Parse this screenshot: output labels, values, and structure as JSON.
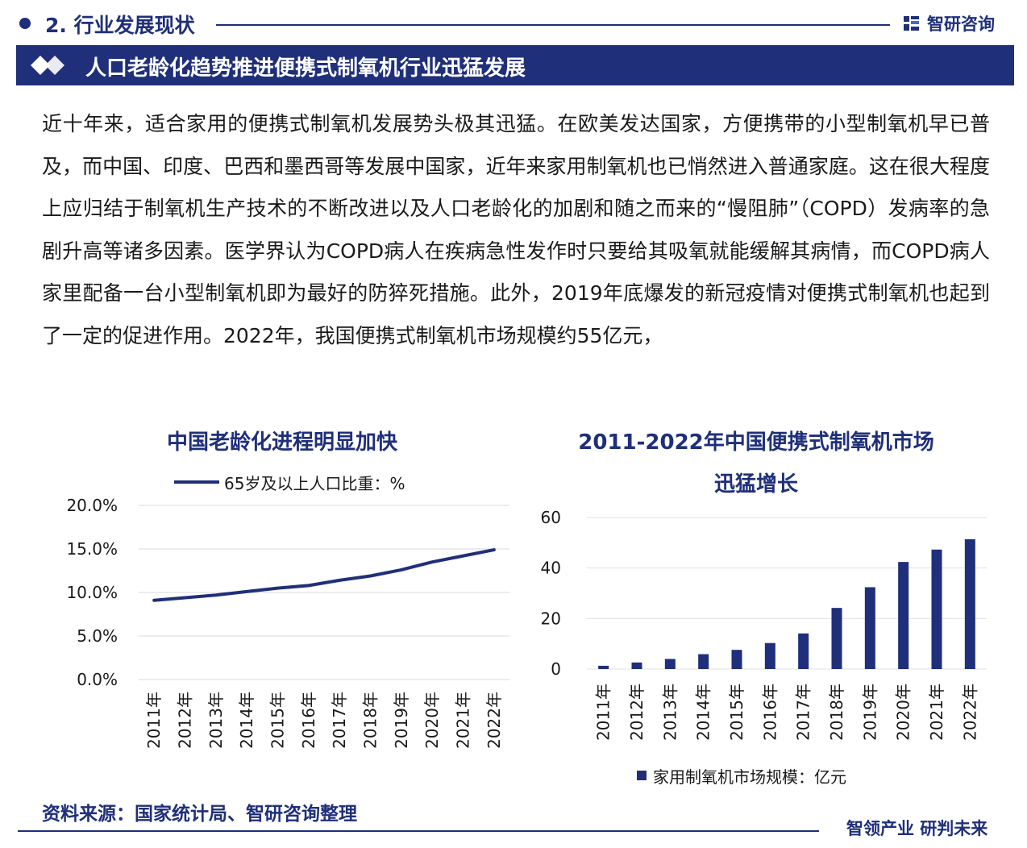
{
  "header": {
    "section_title": "2. 行业发展现状",
    "logo_text": "智研咨询",
    "banner_title": "人口老龄化趋势推进便携式制氧机行业迅猛发展"
  },
  "body": {
    "paragraph": "近十年来，适合家用的便携式制氧机发展势头极其迅猛。在欧美发达国家，方便携带的小型制氧机早已普及，而中国、印度、巴西和墨西哥等发展中国家，近年来家用制氧机也已悄然进入普通家庭。这在很大程度上应归结于制氧机生产技术的不断改进以及人口老龄化的加剧和随之而来的“慢阻肺”（COPD）发病率的急剧升高等诸多因素。医学界认为COPD病人在疾病急性发作时只要给其吸氧就能缓解其病情，而COPD病人家里配备一台小型制氧机即为最好的防猝死措施。此外，2019年底爆发的新冠疫情对便携式制氧机也起到了一定的促进作用。2022年，我国便携式制氧机市场规模约55亿元，"
  },
  "chart_data": [
    {
      "type": "line",
      "title": "中国老龄化进程明显加快",
      "categories": [
        "2011年",
        "2012年",
        "2013年",
        "2014年",
        "2015年",
        "2016年",
        "2017年",
        "2018年",
        "2019年",
        "2020年",
        "2021年",
        "2022年"
      ],
      "series": [
        {
          "name": "65岁及以上人口比重：%",
          "values": [
            9.1,
            9.4,
            9.7,
            10.1,
            10.5,
            10.8,
            11.4,
            11.9,
            12.6,
            13.5,
            14.2,
            14.9
          ]
        }
      ],
      "y_ticks": [
        "20.0%",
        "15.0%",
        "10.0%",
        "5.0%",
        "0.0%"
      ],
      "ylim": [
        0,
        20
      ],
      "grid": true,
      "legend_position": "top",
      "color": "#1f2f7a"
    },
    {
      "type": "bar",
      "title": "2011-2022年中国便携式制氧机市场迅猛增长",
      "title_lines": [
        "2011-2022年中国便携式制氧机市场",
        "迅猛增长"
      ],
      "categories": [
        "2011年",
        "2012年",
        "2013年",
        "2014年",
        "2015年",
        "2016年",
        "2017年",
        "2018年",
        "2019年",
        "2020年",
        "2021年",
        "2022年"
      ],
      "series": [
        {
          "name": "家用制氧机市场规模：亿元",
          "values": [
            1.3,
            2.6,
            4.0,
            5.9,
            7.6,
            10.3,
            14.1,
            24.2,
            32.4,
            42.4,
            47.3,
            51.4
          ]
        }
      ],
      "y_ticks": [
        "60",
        "40",
        "20",
        "0"
      ],
      "ylim": [
        0,
        60
      ],
      "grid": true,
      "legend_position": "bottom",
      "color": "#1f2f7a"
    }
  ],
  "footer": {
    "source": "资料来源：国家统计局、智研咨询整理",
    "slogan": "智领产业 研判未来"
  }
}
